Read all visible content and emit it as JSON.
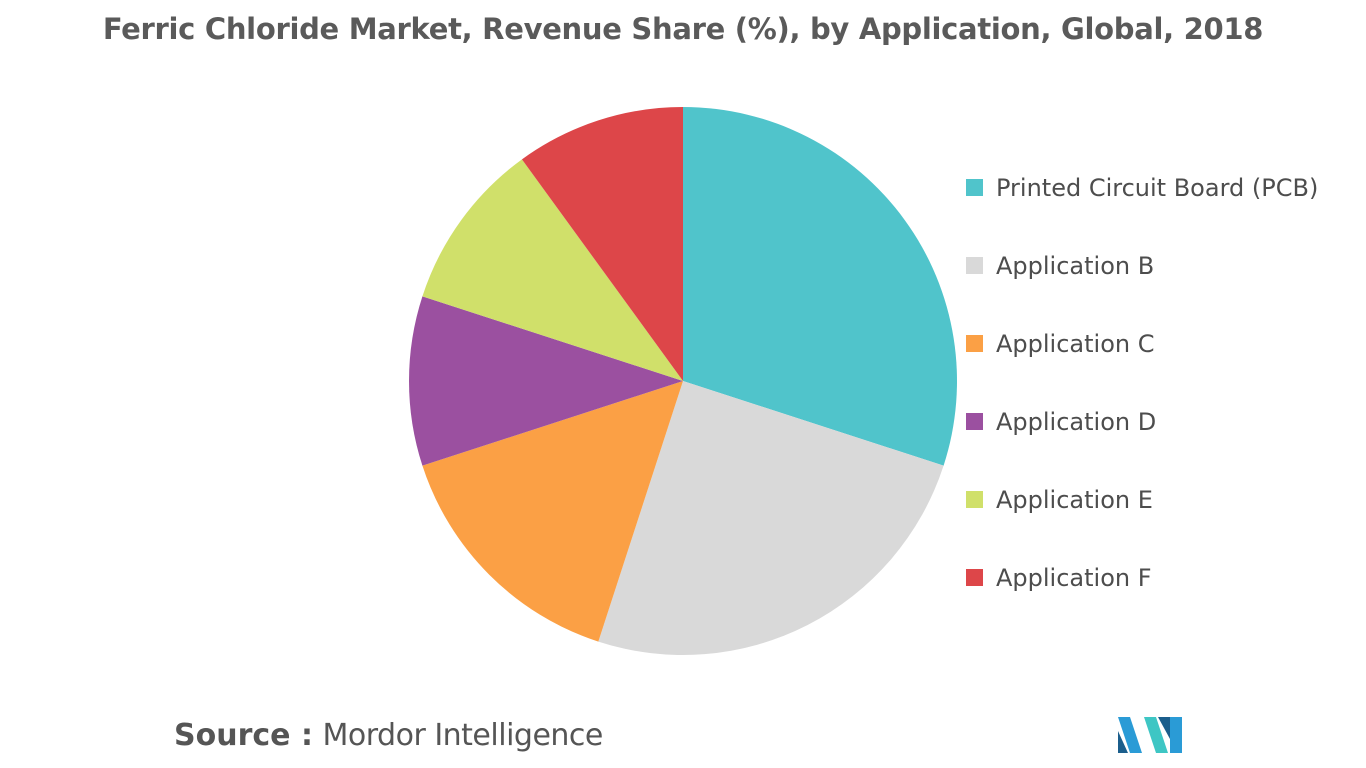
{
  "chart_data": {
    "type": "pie",
    "title": "Ferric Chloride Market, Revenue Share (%), by Application, Global, 2018",
    "categories": [
      "Printed Circuit Board (PCB)",
      "Application B",
      "Application C",
      "Application D",
      "Application E",
      "Application F"
    ],
    "values": [
      30,
      25,
      15,
      10,
      10,
      10
    ],
    "colors": [
      "#50c4cb",
      "#d9d9d9",
      "#fba045",
      "#9b50a0",
      "#d0e06a",
      "#dd4649"
    ],
    "legend_position": "right"
  },
  "source": {
    "label": "Source :",
    "value": "Mordor Intelligence"
  },
  "logo": {
    "icon": "mordor-intelligence-logo-icon",
    "colors": [
      "#2a9bd6",
      "#1b5e8c",
      "#3ec6c4"
    ]
  }
}
